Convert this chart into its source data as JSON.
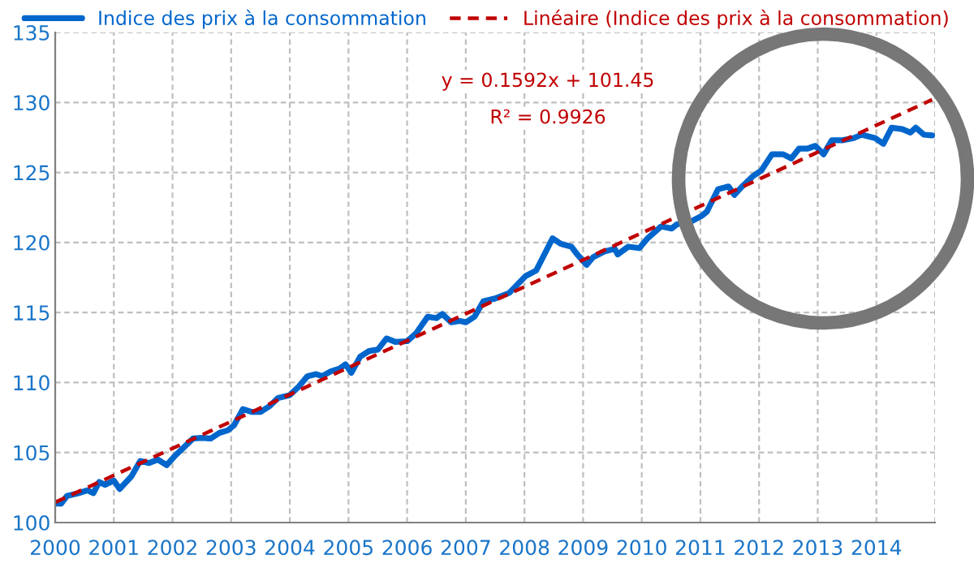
{
  "chart_data": {
    "type": "line",
    "annotations": [
      "y = 0.1592x + 101.45",
      "R² = 0.9926"
    ],
    "series": [
      {
        "name": "Indice des prix à la consommation",
        "color": "#0066cc",
        "x": [
          2000.0,
          2000.1,
          2000.2,
          2000.4,
          2000.55,
          2000.65,
          2000.75,
          2000.85,
          2001.0,
          2001.1,
          2001.3,
          2001.45,
          2001.6,
          2001.75,
          2001.9,
          2002.05,
          2002.2,
          2002.35,
          2002.5,
          2002.65,
          2002.8,
          2002.95,
          2003.05,
          2003.2,
          2003.35,
          2003.5,
          2003.65,
          2003.8,
          2004.0,
          2004.15,
          2004.3,
          2004.45,
          2004.55,
          2004.7,
          2004.85,
          2004.95,
          2005.05,
          2005.2,
          2005.35,
          2005.5,
          2005.65,
          2005.8,
          2006.0,
          2006.15,
          2006.35,
          2006.5,
          2006.6,
          2006.75,
          2006.9,
          2007.0,
          2007.15,
          2007.3,
          2007.5,
          2007.74,
          2008.02,
          2008.2,
          2008.48,
          2008.62,
          2008.8,
          2008.9,
          2009.06,
          2009.17,
          2009.36,
          2009.54,
          2009.59,
          2009.77,
          2009.96,
          2010.1,
          2010.33,
          2010.51,
          2010.6,
          2010.84,
          2011.02,
          2011.11,
          2011.3,
          2011.48,
          2011.58,
          2011.71,
          2011.9,
          2012.04,
          2012.22,
          2012.41,
          2012.55,
          2012.68,
          2012.82,
          2012.96,
          2013.1,
          2013.24,
          2013.42,
          2013.61,
          2013.75,
          2013.98,
          2014.12,
          2014.26,
          2014.44,
          2014.58,
          2014.67,
          2014.81,
          2014.95
        ],
        "values": [
          101.35,
          101.35,
          101.9,
          102.1,
          102.3,
          102.1,
          102.9,
          102.7,
          103.0,
          102.4,
          103.3,
          104.4,
          104.25,
          104.5,
          104.1,
          104.8,
          105.4,
          106.0,
          106.05,
          106.0,
          106.4,
          106.6,
          106.95,
          108.1,
          107.9,
          107.9,
          108.3,
          108.9,
          109.1,
          109.7,
          110.45,
          110.6,
          110.45,
          110.8,
          111.0,
          111.3,
          110.7,
          111.85,
          112.25,
          112.35,
          113.15,
          112.9,
          112.95,
          113.5,
          114.7,
          114.6,
          114.9,
          114.3,
          114.4,
          114.3,
          114.7,
          115.8,
          116.0,
          116.4,
          117.6,
          118.0,
          120.3,
          119.9,
          119.7,
          119.15,
          118.4,
          118.95,
          119.35,
          119.55,
          119.15,
          119.7,
          119.6,
          120.3,
          121.15,
          121.0,
          121.3,
          121.5,
          121.9,
          122.2,
          123.8,
          124.0,
          123.4,
          124.0,
          124.75,
          125.15,
          126.3,
          126.3,
          126.0,
          126.7,
          126.7,
          126.9,
          126.3,
          127.3,
          127.3,
          127.45,
          127.7,
          127.45,
          127.05,
          128.2,
          128.1,
          127.85,
          128.2,
          127.7,
          127.65
        ]
      },
      {
        "name": "Linéaire (Indice des prix à la consommation)",
        "color": "#c00000",
        "line_style": "dashed",
        "x": [
          2000.0,
          2014.95
        ],
        "values": [
          101.45,
          130.2
        ]
      }
    ],
    "xlim": [
      2000,
      2015
    ],
    "xticks": [
      2000,
      2001,
      2002,
      2003,
      2004,
      2005,
      2006,
      2007,
      2008,
      2009,
      2010,
      2011,
      2012,
      2013,
      2014,
      {
        "value": 2015,
        "label": null
      }
    ],
    "ylim": [
      100,
      135
    ],
    "yticks": [
      100,
      105,
      110,
      115,
      120,
      125,
      130,
      135
    ],
    "grid": true,
    "legend": "top"
  }
}
